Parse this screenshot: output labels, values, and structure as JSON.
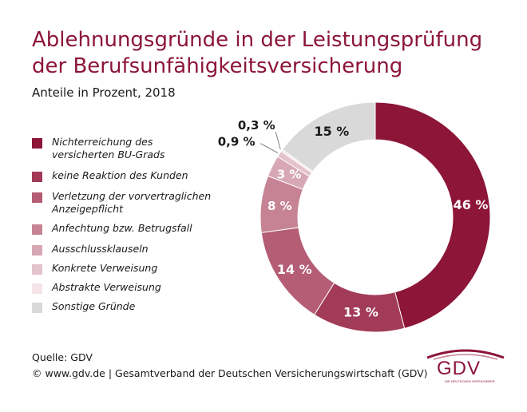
{
  "title_line1": "Ablehnungsgründe in der Leistungsprüfung",
  "title_line2": "der Berufsunfähigkeitsversicherung",
  "subtitle": "Anteile in Prozent, 2018",
  "footer": {
    "source": "Quelle: GDV",
    "copyright": "© www.gdv.de | Gesamtverband der Deutschen Versicherungswirtschaft (GDV)"
  },
  "logo": {
    "text": "GDV",
    "tagline": "DIE DEUTSCHEN VERSICHERER"
  },
  "chart_data": {
    "type": "pie",
    "style": "donut",
    "legend_position": "left",
    "slices": [
      {
        "label": "Nichterreichung des\nversicherten BU-Grads",
        "value": 46,
        "value_label": "46 %",
        "color": "#8c1538",
        "label_color": "#ffffff"
      },
      {
        "label": "keine Reaktion des Kunden",
        "value": 13,
        "value_label": "13 %",
        "color": "#a13b58",
        "label_color": "#ffffff"
      },
      {
        "label": "Verletzung der vorvertraglichen\nAnzeigepflicht",
        "value": 14,
        "value_label": "14 %",
        "color": "#b45d75",
        "label_color": "#ffffff"
      },
      {
        "label": "Anfechtung bzw. Betrugsfall",
        "value": 8,
        "value_label": "8 %",
        "color": "#c68393",
        "label_color": "#ffffff"
      },
      {
        "label": "Ausschlussklauseln",
        "value": 3,
        "value_label": "3 %",
        "color": "#d7a8b4",
        "label_color": "#ffffff"
      },
      {
        "label": "Konkrete Verweisung",
        "value": 0.9,
        "value_label": "0,9 %",
        "color": "#e5c3cb",
        "label_color": "#1a1a1a"
      },
      {
        "label": "Abstrakte Verweisung",
        "value": 0.3,
        "value_label": "0,3 %",
        "color": "#f5e4e8",
        "label_color": "#1a1a1a"
      },
      {
        "label": "Sonstige Gründe",
        "value": 15,
        "value_label": "15 %",
        "color": "#d9d9d9",
        "label_color": "#1a1a1a"
      }
    ]
  }
}
